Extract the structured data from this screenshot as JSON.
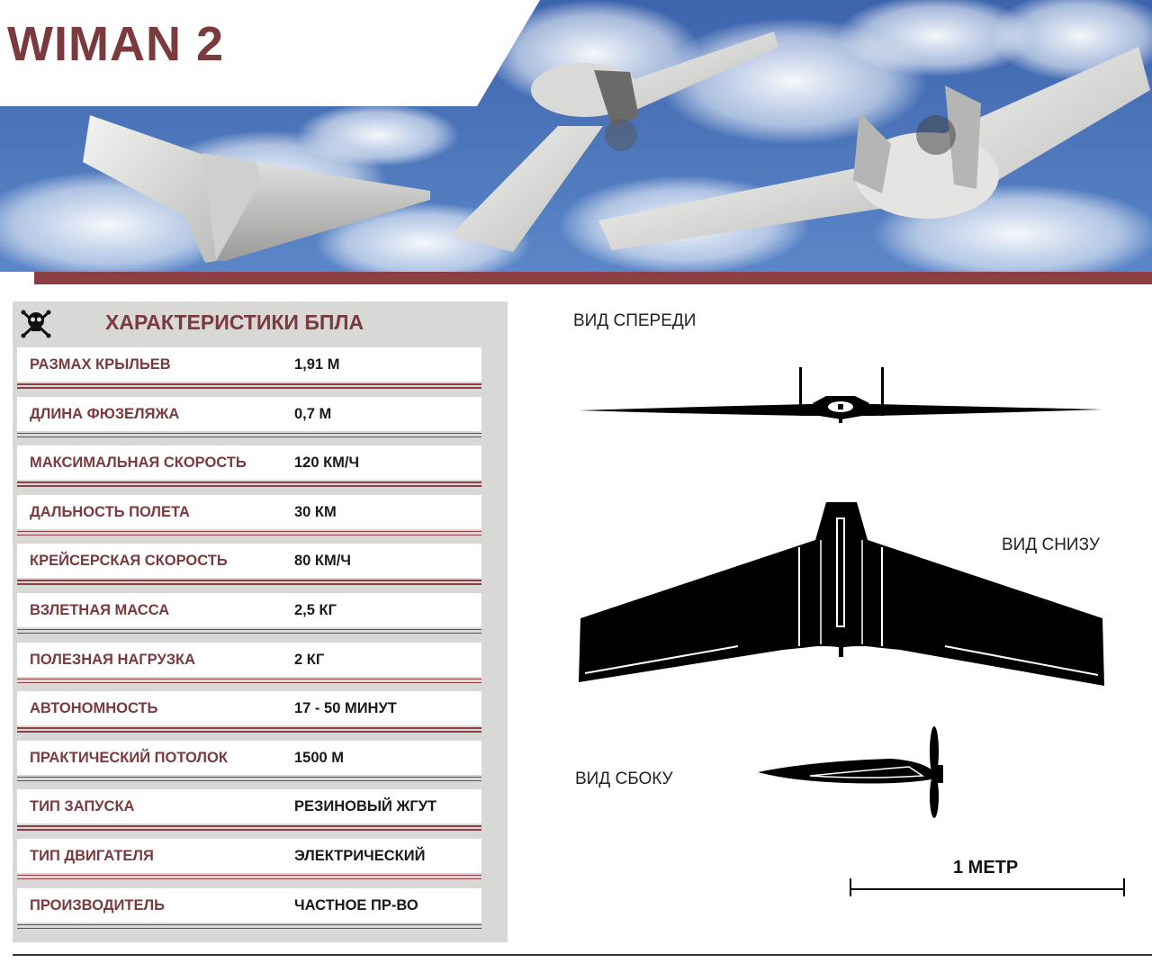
{
  "title": "WIMAN 2",
  "specs": {
    "header": "ХАРАКТЕРИСТИКИ БПЛА",
    "rows": [
      {
        "label": "РАЗМАХ КРЫЛЬЕВ",
        "value": "1,91 М"
      },
      {
        "label": "ДЛИНА ФЮЗЕЛЯЖА",
        "value": "0,7 М"
      },
      {
        "label": "МАКСИМАЛЬНАЯ СКОРОСТЬ",
        "value": "120 КМ/Ч"
      },
      {
        "label": "ДАЛЬНОСТЬ ПОЛЕТА",
        "value": "30 КМ"
      },
      {
        "label": "КРЕЙСЕРСКАЯ СКОРОСТЬ",
        "value": "80 КМ/Ч"
      },
      {
        "label": "ВЗЛЕТНАЯ МАССА",
        "value": "2,5 КГ"
      },
      {
        "label": "ПОЛЕЗНАЯ НАГРУЗКА",
        "value": "2 КГ"
      },
      {
        "label": "АВТОНОМНОСТЬ",
        "value": "17 - 50 МИНУТ"
      },
      {
        "label": "ПРАКТИЧЕСКИЙ ПОТОЛОК",
        "value": "1500 М"
      },
      {
        "label": "ТИП ЗАПУСКА",
        "value": "РЕЗИНОВЫЙ ЖГУТ"
      },
      {
        "label": "ТИП ДВИГАТЕЛЯ",
        "value": "ЭЛЕКТРИЧЕСКИЙ"
      },
      {
        "label": "ПРОИЗВОДИТЕЛЬ",
        "value": "ЧАСТНОЕ ПР-ВО"
      }
    ]
  },
  "views": {
    "front": "ВИД СПЕРЕДИ",
    "bottom": "ВИД СНИЗУ",
    "side": "ВИД СБОКУ"
  },
  "scale_label": "1 МЕТР",
  "colors": {
    "accent": "#7a3a3e",
    "stripe": "#8e3f46",
    "sky": "#4a72b8"
  },
  "icons": {
    "specs": "skull-crossbones-icon"
  }
}
